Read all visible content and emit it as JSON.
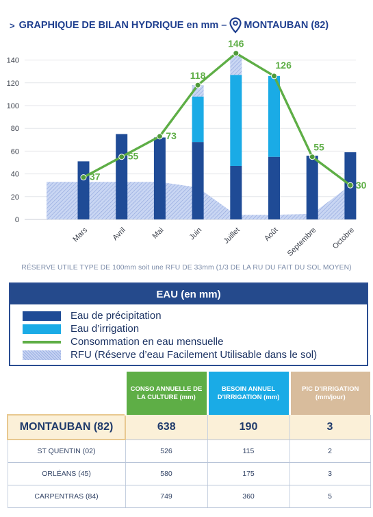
{
  "header": {
    "title_left": "GRAPHIQUE DE BILAN HYDRIQUE en mm –",
    "title_right": "MONTAUBAN (82)",
    "location_icon": "map-pin-icon"
  },
  "chart_data": {
    "type": "bar",
    "categories": [
      "Mars",
      "Avril",
      "Mai",
      "Juin",
      "Juillet",
      "Août",
      "Septembre",
      "Octobre"
    ],
    "ylim": [
      0,
      150
    ],
    "yticks": [
      0,
      20,
      40,
      60,
      80,
      100,
      120,
      140
    ],
    "grid": true,
    "series": [
      {
        "name": "Eau de précipitation",
        "type": "bar",
        "color": "#1f4b96",
        "values": [
          51,
          75,
          72,
          68,
          47,
          55,
          56,
          59
        ]
      },
      {
        "name": "Eau d’irrigation",
        "type": "bar-stacked",
        "color": "#1aabe6",
        "values": [
          0,
          0,
          0,
          40,
          80,
          71,
          0,
          0
        ]
      },
      {
        "name": "Consommation en eau mensuelle",
        "type": "line",
        "color": "#5eae46",
        "values": [
          37,
          55,
          73,
          118,
          146,
          126,
          55,
          30
        ],
        "labels": [
          "37",
          "55",
          "73",
          "118",
          "146",
          "126",
          "55",
          "30"
        ]
      },
      {
        "name": "RFU (Réserve d’eau Facilement Utilisable dans le sol)",
        "type": "area",
        "color": "#c6d3f2",
        "values": [
          33,
          33,
          33,
          28,
          4,
          4,
          5,
          30
        ]
      }
    ],
    "bar_hatch_tops": [
      0,
      0,
      0,
      10,
      17,
      0,
      0,
      0
    ]
  },
  "footnote": "RÉSERVE UTILE TYPE DE 100mm soit une RFU DE 33mm (1/3 DE LA RU DU FAIT DU SOL MOYEN)",
  "legend": {
    "title": "EAU (en mm)",
    "items": [
      {
        "label": "Eau de précipitation",
        "color": "#1f4b96",
        "kind": "box"
      },
      {
        "label": "Eau d’irrigation",
        "color": "#1aabe6",
        "kind": "box"
      },
      {
        "label": "Consommation en eau mensuelle",
        "color": "#5eae46",
        "kind": "line"
      },
      {
        "label": "RFU (Réserve d’eau Facilement Utilisable dans le sol)",
        "color": "#c6d3f2",
        "kind": "hatch"
      }
    ]
  },
  "table": {
    "headers": [
      {
        "label": "CONSO ANNUELLE DE LA CULTURE (mm)",
        "color": "#5eae46"
      },
      {
        "label": "BESOIN ANNUEL D’IRRIGATION (mm)",
        "color": "#1aabe6"
      },
      {
        "label": "PIC D’IRRIGATION (mm/jour)",
        "color": "#d8bc9c"
      }
    ],
    "main_row": {
      "city": "MONTAUBAN (82)",
      "conso": "638",
      "besoin": "190",
      "pic": "3"
    },
    "rows": [
      {
        "city": "ST QUENTIN (02)",
        "conso": "526",
        "besoin": "115",
        "pic": "2"
      },
      {
        "city": "ORLÉANS (45)",
        "conso": "580",
        "besoin": "175",
        "pic": "3"
      },
      {
        "city": "CARPENTRAS (84)",
        "conso": "749",
        "besoin": "360",
        "pic": "5"
      }
    ]
  }
}
